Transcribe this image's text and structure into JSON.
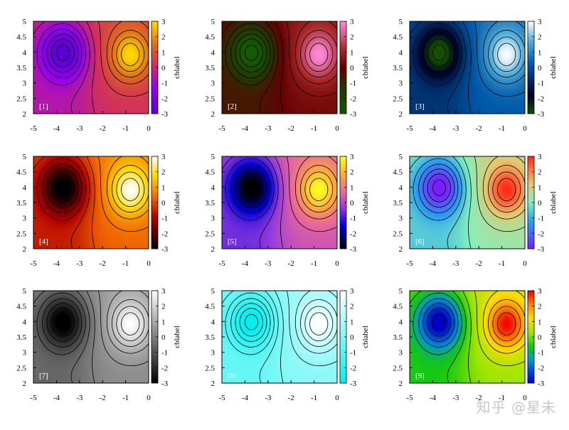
{
  "figure": {
    "watermark": "知乎 @星未"
  },
  "chart_data": [
    {
      "type": "heatmap",
      "panel_label": "[1]",
      "colormap": "purple-orange",
      "x_ticks": [
        "-5",
        "-4",
        "-3",
        "-2",
        "-1",
        "0"
      ],
      "y_ticks": [
        "2",
        "2.5",
        "3",
        "3.5",
        "4",
        "4.5",
        "5"
      ],
      "colorbar_ticks": [
        "3",
        "2",
        "1",
        "0",
        "-1",
        "-2",
        "-3"
      ],
      "colorbar_label": "cblabel",
      "xlim": [
        -5,
        0
      ],
      "ylim": [
        2,
        5
      ],
      "zlim": [
        -3,
        3
      ],
      "contour_levels": [
        -3,
        -2.5,
        -2,
        -1.5,
        -1,
        -0.5,
        0,
        0.5,
        1,
        1.5,
        2,
        2.5,
        3
      ],
      "field_extrema": {
        "min": {
          "x": -3.7,
          "y": 4.0,
          "z": -3
        },
        "max": {
          "x": -0.8,
          "y": 3.9,
          "z": 2.4
        }
      }
    },
    {
      "type": "heatmap",
      "panel_label": "[2]",
      "colormap": "green-red-pink",
      "x_ticks": [
        "-5",
        "-4",
        "-3",
        "-2",
        "-1",
        "0"
      ],
      "y_ticks": [
        "2",
        "2.5",
        "3",
        "3.5",
        "4",
        "4.5",
        "5"
      ],
      "colorbar_ticks": [
        "3",
        "2",
        "1",
        "0",
        "-1",
        "-2",
        "-3"
      ],
      "colorbar_label": "cblabel",
      "xlim": [
        -5,
        0
      ],
      "ylim": [
        2,
        5
      ],
      "zlim": [
        -3,
        3
      ],
      "contour_levels": [
        -3,
        -2.5,
        -2,
        -1.5,
        -1,
        -0.5,
        0,
        0.5,
        1,
        1.5,
        2,
        2.5,
        3
      ],
      "field_extrema": {
        "min": {
          "x": -3.7,
          "y": 4.0,
          "z": -3
        },
        "max": {
          "x": -0.8,
          "y": 3.9,
          "z": 2.4
        }
      }
    },
    {
      "type": "heatmap",
      "panel_label": "[3]",
      "colormap": "green-blue-white",
      "x_ticks": [
        "-5",
        "-4",
        "-3",
        "-2",
        "-1",
        "0"
      ],
      "y_ticks": [
        "2",
        "2.5",
        "3",
        "3.5",
        "4",
        "4.5",
        "5"
      ],
      "colorbar_ticks": [
        "3",
        "2",
        "1",
        "0",
        "-1",
        "-2",
        "-3"
      ],
      "colorbar_label": "cblabel",
      "xlim": [
        -5,
        0
      ],
      "ylim": [
        2,
        5
      ],
      "zlim": [
        -3,
        3
      ],
      "contour_levels": [
        -3,
        -2.5,
        -2,
        -1.5,
        -1,
        -0.5,
        0,
        0.5,
        1,
        1.5,
        2,
        2.5,
        3
      ],
      "field_extrema": {
        "min": {
          "x": -3.7,
          "y": 4.0,
          "z": -3
        },
        "max": {
          "x": -0.8,
          "y": 3.9,
          "z": 2.4
        }
      }
    },
    {
      "type": "heatmap",
      "panel_label": "[4]",
      "colormap": "black-red-yellow-white",
      "x_ticks": [
        "-5",
        "-4",
        "-3",
        "-2",
        "-1",
        "0"
      ],
      "y_ticks": [
        "2",
        "2.5",
        "3",
        "3.5",
        "4",
        "4.5",
        "5"
      ],
      "colorbar_ticks": [
        "3",
        "2",
        "1",
        "0",
        "-1",
        "-2",
        "-3"
      ],
      "colorbar_label": "cblabel",
      "xlim": [
        -5,
        0
      ],
      "ylim": [
        2,
        5
      ],
      "zlim": [
        -3,
        3
      ],
      "contour_levels": [
        -3,
        -2.5,
        -2,
        -1.5,
        -1,
        -0.5,
        0,
        0.5,
        1,
        1.5,
        2,
        2.5,
        3
      ],
      "field_extrema": {
        "min": {
          "x": -3.7,
          "y": 4.0,
          "z": -3
        },
        "max": {
          "x": -0.8,
          "y": 3.9,
          "z": 2.4
        }
      }
    },
    {
      "type": "heatmap",
      "panel_label": "[5]",
      "colormap": "black-blue-pink-yellow",
      "x_ticks": [
        "-5",
        "-4",
        "-3",
        "-2",
        "-1",
        "0"
      ],
      "y_ticks": [
        "2",
        "2.5",
        "3",
        "3.5",
        "4",
        "4.5",
        "5"
      ],
      "colorbar_ticks": [
        "3",
        "2",
        "1",
        "0",
        "-1",
        "-2",
        "-3"
      ],
      "colorbar_label": "cblabel",
      "xlim": [
        -5,
        0
      ],
      "ylim": [
        2,
        5
      ],
      "zlim": [
        -3,
        3
      ],
      "contour_levels": [
        -3,
        -2.5,
        -2,
        -1.5,
        -1,
        -0.5,
        0,
        0.5,
        1,
        1.5,
        2,
        2.5,
        3
      ],
      "field_extrema": {
        "min": {
          "x": -3.7,
          "y": 4.0,
          "z": -3
        },
        "max": {
          "x": -0.8,
          "y": 3.9,
          "z": 2.4
        }
      }
    },
    {
      "type": "heatmap",
      "panel_label": "[6]",
      "colormap": "rainbow",
      "x_ticks": [
        "-5",
        "-4",
        "-3",
        "-2",
        "-1",
        "0"
      ],
      "y_ticks": [
        "2",
        "2.5",
        "3",
        "3.5",
        "4",
        "4.5",
        "5"
      ],
      "colorbar_ticks": [
        "3",
        "2",
        "1",
        "0",
        "-1",
        "-2",
        "-3"
      ],
      "colorbar_label": "cblabel",
      "xlim": [
        -5,
        0
      ],
      "ylim": [
        2,
        5
      ],
      "zlim": [
        -3,
        3
      ],
      "contour_levels": [
        -3,
        -2.5,
        -2,
        -1.5,
        -1,
        -0.5,
        0,
        0.5,
        1,
        1.5,
        2,
        2.5,
        3
      ],
      "field_extrema": {
        "min": {
          "x": -3.7,
          "y": 4.0,
          "z": -3
        },
        "max": {
          "x": -0.8,
          "y": 3.9,
          "z": 2.4
        }
      }
    },
    {
      "type": "heatmap",
      "panel_label": "[7]",
      "colormap": "gray",
      "x_ticks": [
        "-5",
        "-4",
        "-3",
        "-2",
        "-1",
        "0"
      ],
      "y_ticks": [
        "2",
        "2.5",
        "3",
        "3.5",
        "4",
        "4.5",
        "5"
      ],
      "colorbar_ticks": [
        "3",
        "2",
        "1",
        "0",
        "-1",
        "-2",
        "-3"
      ],
      "colorbar_label": "cblabel",
      "xlim": [
        -5,
        0
      ],
      "ylim": [
        2,
        5
      ],
      "zlim": [
        -3,
        3
      ],
      "contour_levels": [
        -3,
        -2.5,
        -2,
        -1.5,
        -1,
        -0.5,
        0,
        0.5,
        1,
        1.5,
        2,
        2.5,
        3
      ],
      "field_extrema": {
        "min": {
          "x": -3.7,
          "y": 4.0,
          "z": -3
        },
        "max": {
          "x": -0.8,
          "y": 3.9,
          "z": 2.4
        }
      }
    },
    {
      "type": "heatmap",
      "panel_label": "[8]",
      "colormap": "cyan-white",
      "x_ticks": [
        "-5",
        "-4",
        "-3",
        "-2",
        "-1",
        "0"
      ],
      "y_ticks": [
        "2",
        "2.5",
        "3",
        "3.5",
        "4",
        "4.5",
        "5"
      ],
      "colorbar_ticks": [
        "3",
        "2",
        "1",
        "0",
        "-1",
        "-2",
        "-3"
      ],
      "colorbar_label": "cblabel",
      "xlim": [
        -5,
        0
      ],
      "ylim": [
        2,
        5
      ],
      "zlim": [
        -3,
        3
      ],
      "contour_levels": [
        -3,
        -2.5,
        -2,
        -1.5,
        -1,
        -0.5,
        0,
        0.5,
        1,
        1.5,
        2,
        2.5,
        3
      ],
      "field_extrema": {
        "min": {
          "x": -3.7,
          "y": 4.0,
          "z": -3
        },
        "max": {
          "x": -0.8,
          "y": 3.9,
          "z": 2.4
        }
      }
    },
    {
      "type": "heatmap",
      "panel_label": "[9]",
      "colormap": "blue-green-yellow-red",
      "x_ticks": [
        "-5",
        "-4",
        "-3",
        "-2",
        "-1",
        "0"
      ],
      "y_ticks": [
        "2",
        "2.5",
        "3",
        "3.5",
        "4",
        "4.5",
        "5"
      ],
      "colorbar_ticks": [
        "3",
        "2",
        "1",
        "0",
        "-1",
        "-2",
        "-3"
      ],
      "colorbar_label": "cblabel",
      "xlim": [
        -5,
        0
      ],
      "ylim": [
        2,
        5
      ],
      "zlim": [
        -3,
        3
      ],
      "contour_levels": [
        -3,
        -2.5,
        -2,
        -1.5,
        -1,
        -0.5,
        0,
        0.5,
        1,
        1.5,
        2,
        2.5,
        3
      ],
      "field_extrema": {
        "min": {
          "x": -3.7,
          "y": 4.0,
          "z": -3
        },
        "max": {
          "x": -0.8,
          "y": 3.9,
          "z": 2.4
        }
      }
    }
  ]
}
